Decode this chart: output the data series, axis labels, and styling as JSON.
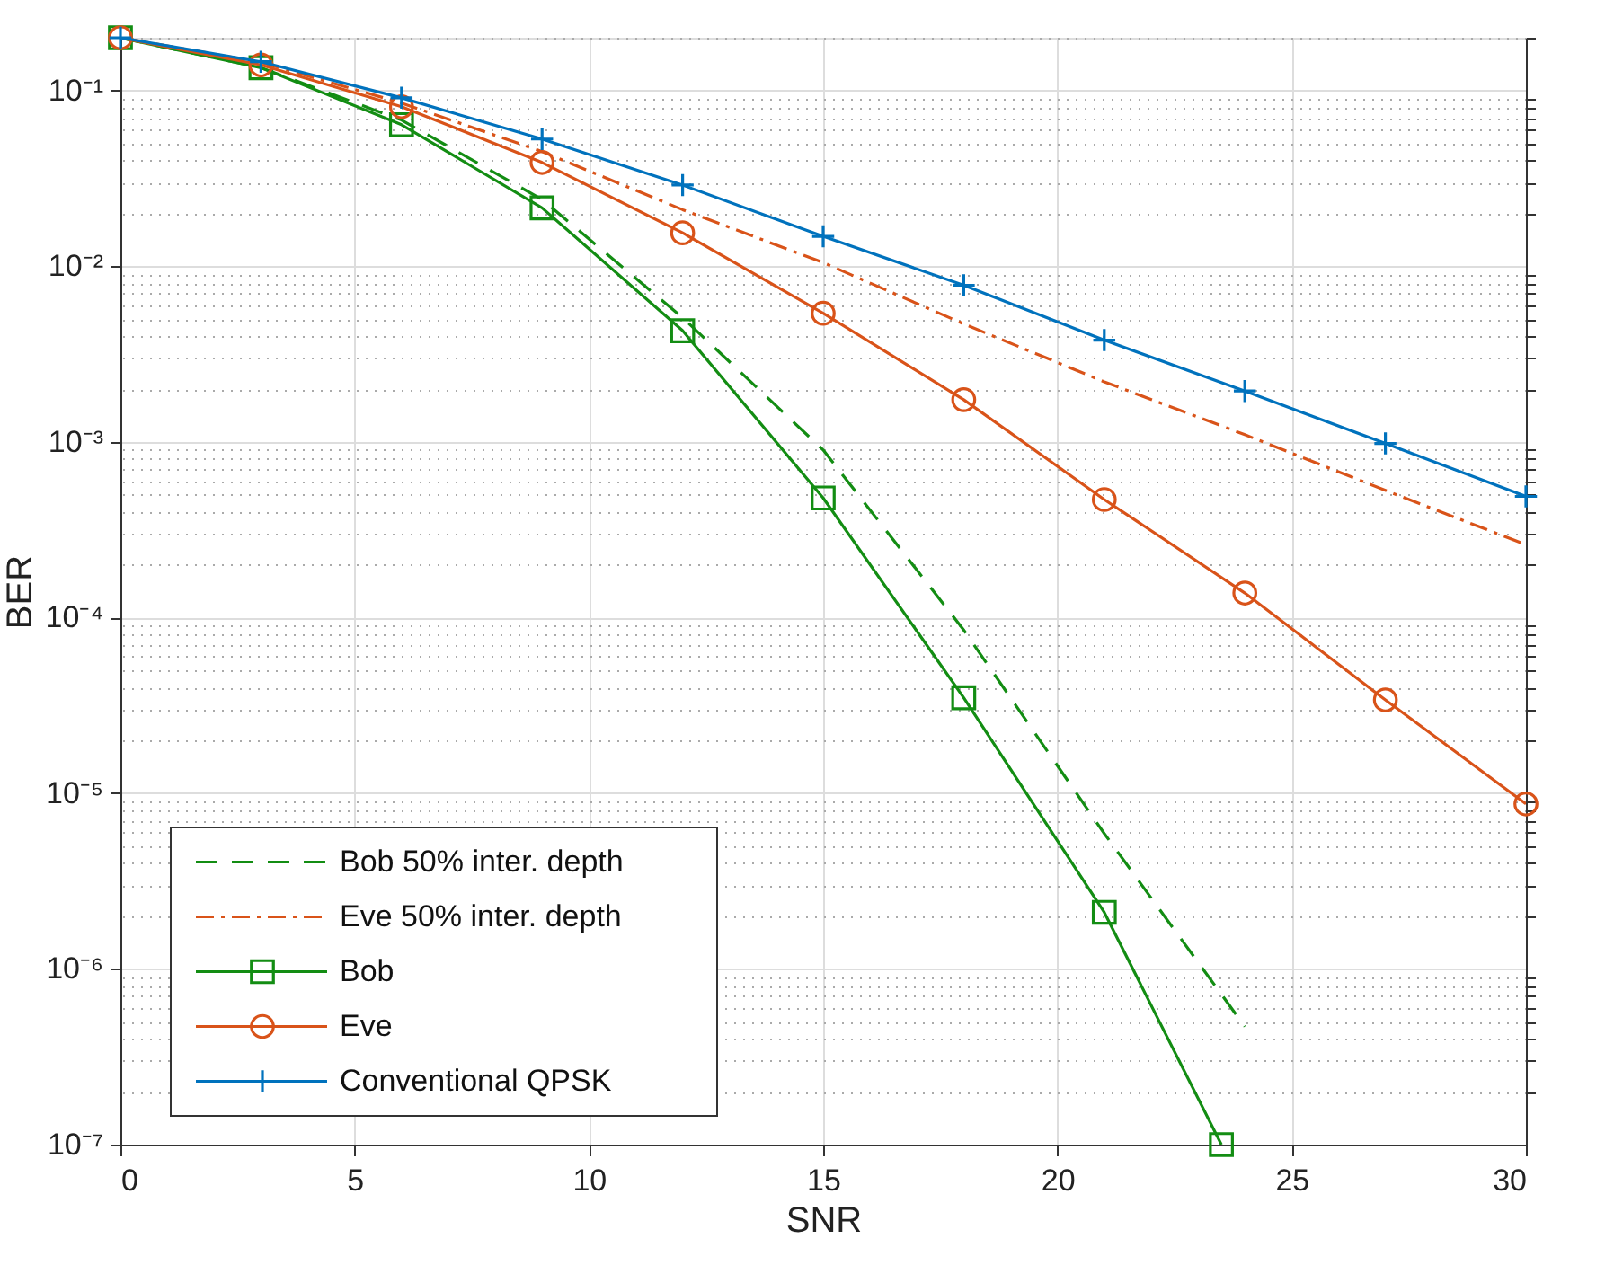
{
  "chart_data": {
    "type": "line",
    "xlabel": "SNR",
    "ylabel": "BER",
    "log": "y",
    "grid": true,
    "legend": "bottom left",
    "xlim": [
      0,
      30
    ],
    "xticks": [
      0,
      5,
      10,
      15,
      20,
      25,
      30
    ],
    "ylim": [
      1e-07,
      0.2
    ],
    "yticks": [
      {
        "value": 1e-07,
        "label": "10⁻⁷"
      },
      {
        "value": 1e-06,
        "label": "10⁻⁶"
      },
      {
        "value": 1e-05,
        "label": "10⁻⁵"
      },
      {
        "value": 0.0001,
        "label": "10⁻⁴"
      },
      {
        "value": 0.001,
        "label": "10⁻³"
      },
      {
        "value": 0.01,
        "label": "10⁻²"
      },
      {
        "value": 0.1,
        "label": "10⁻¹"
      }
    ],
    "series": [
      {
        "name": "Bob 50% inter. depth",
        "color": "#138d13",
        "line_style": "dashed",
        "marker": "none",
        "x": [
          0,
          3,
          6,
          9,
          12,
          15,
          18,
          21,
          24
        ],
        "values": [
          0.2,
          0.135,
          0.068,
          0.024,
          0.0051,
          0.0009,
          8.5e-05,
          5.9e-06,
          4.7e-07
        ]
      },
      {
        "name": "Eve 50% inter. depth",
        "color": "#d95319",
        "line_style": "dashdot",
        "marker": "none",
        "x": [
          0,
          3,
          6,
          9,
          12,
          15,
          18,
          21,
          24,
          27,
          30
        ],
        "values": [
          0.2,
          0.145,
          0.085,
          0.045,
          0.021,
          0.0105,
          0.0047,
          0.0022,
          0.0011,
          0.00053,
          0.00026
        ]
      },
      {
        "name": "Bob",
        "color": "#138d13",
        "line_style": "solid",
        "marker": "square",
        "x": [
          0,
          3,
          6,
          9,
          12,
          15,
          18,
          21,
          23.5
        ],
        "values": [
          0.2,
          0.135,
          0.064,
          0.0215,
          0.0043,
          0.00048,
          3.5e-05,
          2.1e-06,
          1e-07
        ]
      },
      {
        "name": "Eve",
        "color": "#d95319",
        "line_style": "solid",
        "marker": "circle",
        "x": [
          0,
          3,
          6,
          9,
          12,
          15,
          18,
          21,
          24,
          27,
          30
        ],
        "values": [
          0.2,
          0.14,
          0.081,
          0.039,
          0.0155,
          0.0054,
          0.00174,
          0.00047,
          0.000138,
          3.4e-05,
          8.7e-06
        ]
      },
      {
        "name": "Conventional QPSK",
        "color": "#0072bd",
        "line_style": "solid",
        "marker": "cross",
        "x": [
          0,
          3,
          6,
          9,
          12,
          15,
          18,
          21,
          24,
          27,
          30
        ],
        "values": [
          0.2,
          0.146,
          0.091,
          0.053,
          0.029,
          0.0148,
          0.0078,
          0.0038,
          0.00195,
          0.00098,
          0.00049
        ]
      }
    ]
  }
}
